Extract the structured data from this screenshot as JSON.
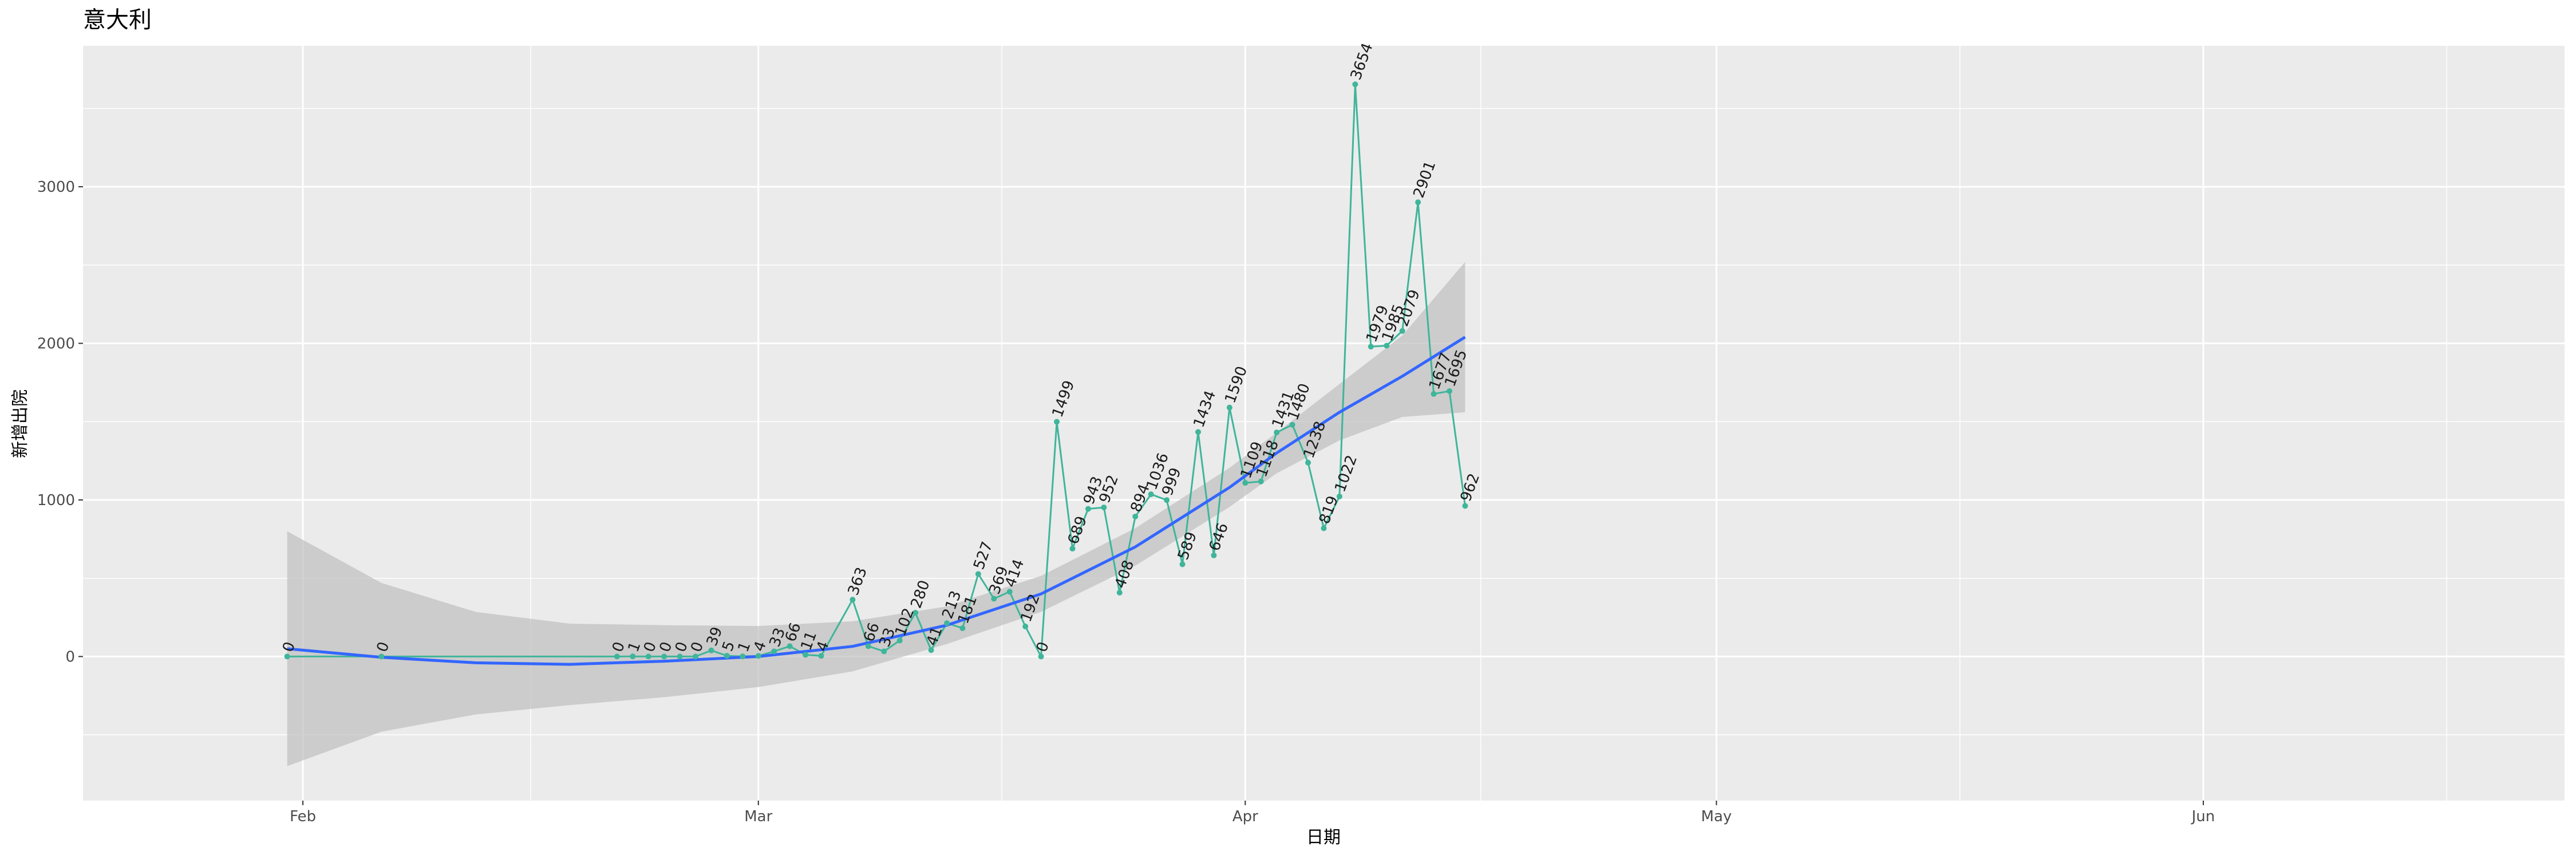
{
  "chart_data": {
    "type": "line",
    "title": "意大利",
    "xlabel": "日期",
    "ylabel": "新增出院",
    "x_tick_labels": [
      "Feb",
      "Mar",
      "Apr",
      "May",
      "Jun"
    ],
    "x_ticks": [
      "2020-02-01",
      "2020-03-01",
      "2020-04-01",
      "2020-05-01",
      "2020-06-01"
    ],
    "xlim": [
      "2020-01-18",
      "2020-06-24"
    ],
    "y_ticks": [
      0,
      1000,
      2000,
      3000
    ],
    "ylim": [
      -920,
      3900
    ],
    "grid": true,
    "colors": {
      "panel": "#ebebeb",
      "grid": "#ffffff",
      "line": "#3fb59a",
      "smooth": "#3366ff",
      "band": "#bfbfbf"
    },
    "series": [
      {
        "points": [
          {
            "x": "2020-01-31",
            "y": 0
          },
          {
            "x": "2020-02-06",
            "y": 0
          },
          {
            "x": "2020-02-21",
            "y": 0
          },
          {
            "x": "2020-02-22",
            "y": 1
          },
          {
            "x": "2020-02-23",
            "y": 0
          },
          {
            "x": "2020-02-24",
            "y": 0
          },
          {
            "x": "2020-02-25",
            "y": 0
          },
          {
            "x": "2020-02-26",
            "y": 0
          },
          {
            "x": "2020-02-27",
            "y": 39
          },
          {
            "x": "2020-02-28",
            "y": 5
          },
          {
            "x": "2020-02-29",
            "y": 1
          },
          {
            "x": "2020-03-01",
            "y": 4
          },
          {
            "x": "2020-03-02",
            "y": 33
          },
          {
            "x": "2020-03-03",
            "y": 66
          },
          {
            "x": "2020-03-04",
            "y": 11
          },
          {
            "x": "2020-03-05",
            "y": 4
          },
          {
            "x": "2020-03-07",
            "y": 363
          },
          {
            "x": "2020-03-08",
            "y": 66
          },
          {
            "x": "2020-03-09",
            "y": 33
          },
          {
            "x": "2020-03-10",
            "y": 102
          },
          {
            "x": "2020-03-11",
            "y": 280
          },
          {
            "x": "2020-03-12",
            "y": 41
          },
          {
            "x": "2020-03-13",
            "y": 213
          },
          {
            "x": "2020-03-14",
            "y": 181
          },
          {
            "x": "2020-03-15",
            "y": 527
          },
          {
            "x": "2020-03-16",
            "y": 369
          },
          {
            "x": "2020-03-17",
            "y": 414
          },
          {
            "x": "2020-03-18",
            "y": 192
          },
          {
            "x": "2020-03-19",
            "y": 0
          },
          {
            "x": "2020-03-20",
            "y": 1499
          },
          {
            "x": "2020-03-21",
            "y": 689
          },
          {
            "x": "2020-03-22",
            "y": 943
          },
          {
            "x": "2020-03-23",
            "y": 952
          },
          {
            "x": "2020-03-24",
            "y": 408
          },
          {
            "x": "2020-03-25",
            "y": 894
          },
          {
            "x": "2020-03-26",
            "y": 1036
          },
          {
            "x": "2020-03-27",
            "y": 999
          },
          {
            "x": "2020-03-28",
            "y": 589
          },
          {
            "x": "2020-03-29",
            "y": 1434
          },
          {
            "x": "2020-03-30",
            "y": 646
          },
          {
            "x": "2020-03-31",
            "y": 1590
          },
          {
            "x": "2020-04-01",
            "y": 1109
          },
          {
            "x": "2020-04-02",
            "y": 1118
          },
          {
            "x": "2020-04-03",
            "y": 1431
          },
          {
            "x": "2020-04-04",
            "y": 1480
          },
          {
            "x": "2020-04-05",
            "y": 1238
          },
          {
            "x": "2020-04-06",
            "y": 819
          },
          {
            "x": "2020-04-07",
            "y": 1022
          },
          {
            "x": "2020-04-08",
            "y": 3654
          },
          {
            "x": "2020-04-09",
            "y": 1979
          },
          {
            "x": "2020-04-10",
            "y": 1985
          },
          {
            "x": "2020-04-11",
            "y": 2079
          },
          {
            "x": "2020-04-12",
            "y": 2901
          },
          {
            "x": "2020-04-13",
            "y": 1677
          },
          {
            "x": "2020-04-14",
            "y": 1695
          },
          {
            "x": "2020-04-15",
            "y": 962
          }
        ]
      }
    ],
    "smooth": [
      {
        "x": "2020-01-31",
        "y": 50,
        "lo": -700,
        "hi": 800
      },
      {
        "x": "2020-02-06",
        "y": -5,
        "lo": -480,
        "hi": 470
      },
      {
        "x": "2020-02-12",
        "y": -40,
        "lo": -370,
        "hi": 285
      },
      {
        "x": "2020-02-18",
        "y": -50,
        "lo": -310,
        "hi": 210
      },
      {
        "x": "2020-02-24",
        "y": -30,
        "lo": -260,
        "hi": 200
      },
      {
        "x": "2020-03-01",
        "y": 0,
        "lo": -195,
        "hi": 195
      },
      {
        "x": "2020-03-07",
        "y": 65,
        "lo": -95,
        "hi": 225
      },
      {
        "x": "2020-03-13",
        "y": 200,
        "lo": 80,
        "hi": 320
      },
      {
        "x": "2020-03-19",
        "y": 400,
        "lo": 285,
        "hi": 515
      },
      {
        "x": "2020-03-25",
        "y": 700,
        "lo": 580,
        "hi": 820
      },
      {
        "x": "2020-03-31",
        "y": 1080,
        "lo": 955,
        "hi": 1205
      },
      {
        "x": "2020-04-03",
        "y": 1300,
        "lo": 1170,
        "hi": 1430
      },
      {
        "x": "2020-04-07",
        "y": 1560,
        "lo": 1380,
        "hi": 1740
      },
      {
        "x": "2020-04-11",
        "y": 1790,
        "lo": 1530,
        "hi": 2050
      },
      {
        "x": "2020-04-15",
        "y": 2040,
        "lo": 1560,
        "hi": 2520
      }
    ]
  }
}
